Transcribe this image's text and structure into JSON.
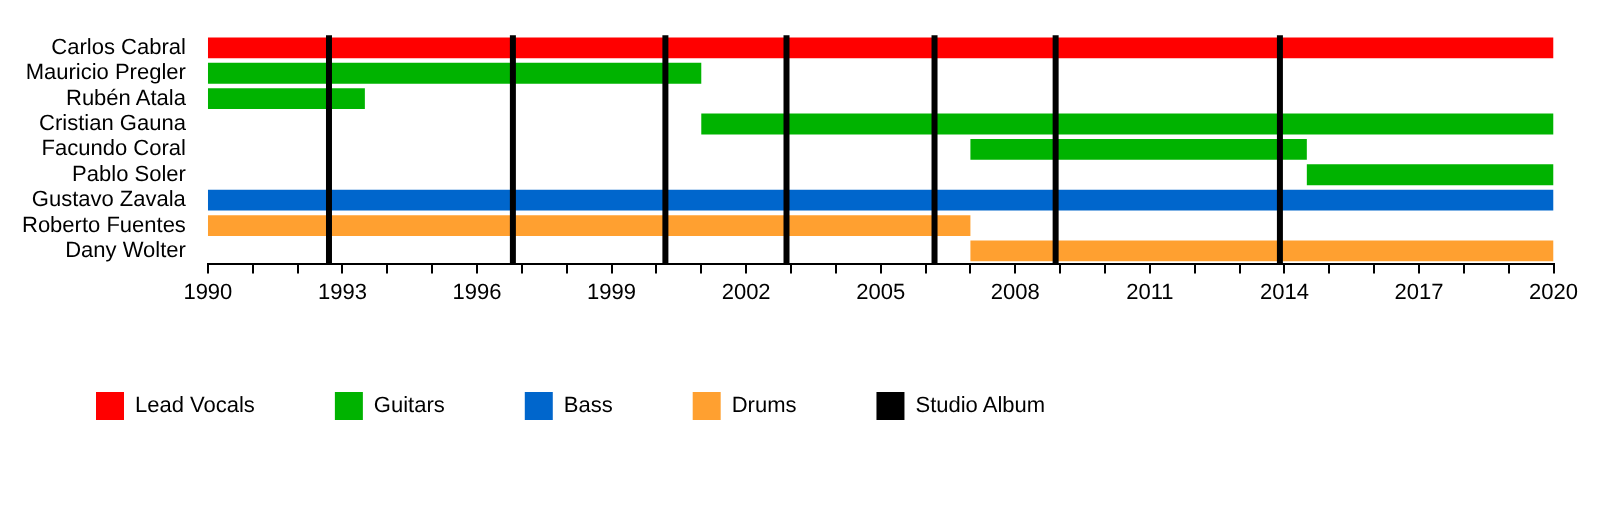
{
  "chart_data": {
    "type": "bar",
    "orientation": "horizontal",
    "categories": [
      "Carlos Cabral",
      "Mauricio Pregler",
      "Rubén Atala",
      "Cristian Gauna",
      "Facundo Coral",
      "Pablo Soler",
      "Gustavo Zavala",
      "Roberto Fuentes",
      "Dany Wolter"
    ],
    "series": [
      {
        "name": "Lead Vocals",
        "color": "#ff0000",
        "values": [
          30,
          null,
          null,
          null,
          null,
          null,
          null,
          null,
          null
        ],
        "base": [
          1990,
          null,
          null,
          null,
          null,
          null,
          null,
          null,
          null
        ]
      },
      {
        "name": "Guitars",
        "color": "#00b300",
        "values": [
          null,
          11,
          3.5,
          19,
          7.5,
          5.5,
          null,
          null,
          null
        ],
        "base": [
          null,
          1990,
          1990,
          2001,
          2007,
          2014.5,
          null,
          null,
          null
        ]
      },
      {
        "name": "Bass",
        "color": "#0066cc",
        "values": [
          null,
          null,
          null,
          null,
          null,
          null,
          30,
          null,
          null
        ],
        "base": [
          null,
          null,
          null,
          null,
          null,
          null,
          1990,
          null,
          null
        ]
      },
      {
        "name": "Drums",
        "color": "#ffa030",
        "values": [
          null,
          null,
          null,
          null,
          null,
          null,
          null,
          17,
          13
        ],
        "base": [
          null,
          null,
          null,
          null,
          null,
          null,
          null,
          1990,
          2007
        ]
      }
    ],
    "xlim": [
      1990,
      2020
    ],
    "xticks": [
      1990,
      {
        "value": 1991,
        "label": null
      },
      {
        "value": 1992,
        "label": null
      },
      1993,
      {
        "value": 1994,
        "label": null
      },
      {
        "value": 1995,
        "label": null
      },
      1996,
      {
        "value": 1997,
        "label": null
      },
      {
        "value": 1998,
        "label": null
      },
      1999,
      {
        "value": 2000,
        "label": null
      },
      {
        "value": 2001,
        "label": null
      },
      2002,
      {
        "value": 2003,
        "label": null
      },
      {
        "value": 2004,
        "label": null
      },
      2005,
      {
        "value": 2006,
        "label": null
      },
      {
        "value": 2007,
        "label": null
      },
      2008,
      {
        "value": 2009,
        "label": null
      },
      {
        "value": 2010,
        "label": null
      },
      2011,
      {
        "value": 2012,
        "label": null
      },
      {
        "value": 2013,
        "label": null
      },
      2014,
      {
        "value": 2015,
        "label": null
      },
      {
        "value": 2016,
        "label": null
      },
      2017,
      {
        "value": 2018,
        "label": null
      },
      {
        "value": 2019,
        "label": null
      },
      2020
    ],
    "ref_lines": [
      {
        "axis": "x",
        "value": 1992.7,
        "label": "Studio Album",
        "color": "#000000"
      },
      {
        "axis": "x",
        "value": 1996.8,
        "color": "#000000"
      },
      {
        "axis": "x",
        "value": 2000.2,
        "color": "#000000"
      },
      {
        "axis": "x",
        "value": 2002.9,
        "color": "#000000"
      },
      {
        "axis": "x",
        "value": 2006.2,
        "color": "#000000"
      },
      {
        "axis": "x",
        "value": 2008.9,
        "color": "#000000"
      },
      {
        "axis": "x",
        "value": 2013.9,
        "color": "#000000"
      }
    ],
    "grid": false,
    "legend": "bottom left"
  }
}
